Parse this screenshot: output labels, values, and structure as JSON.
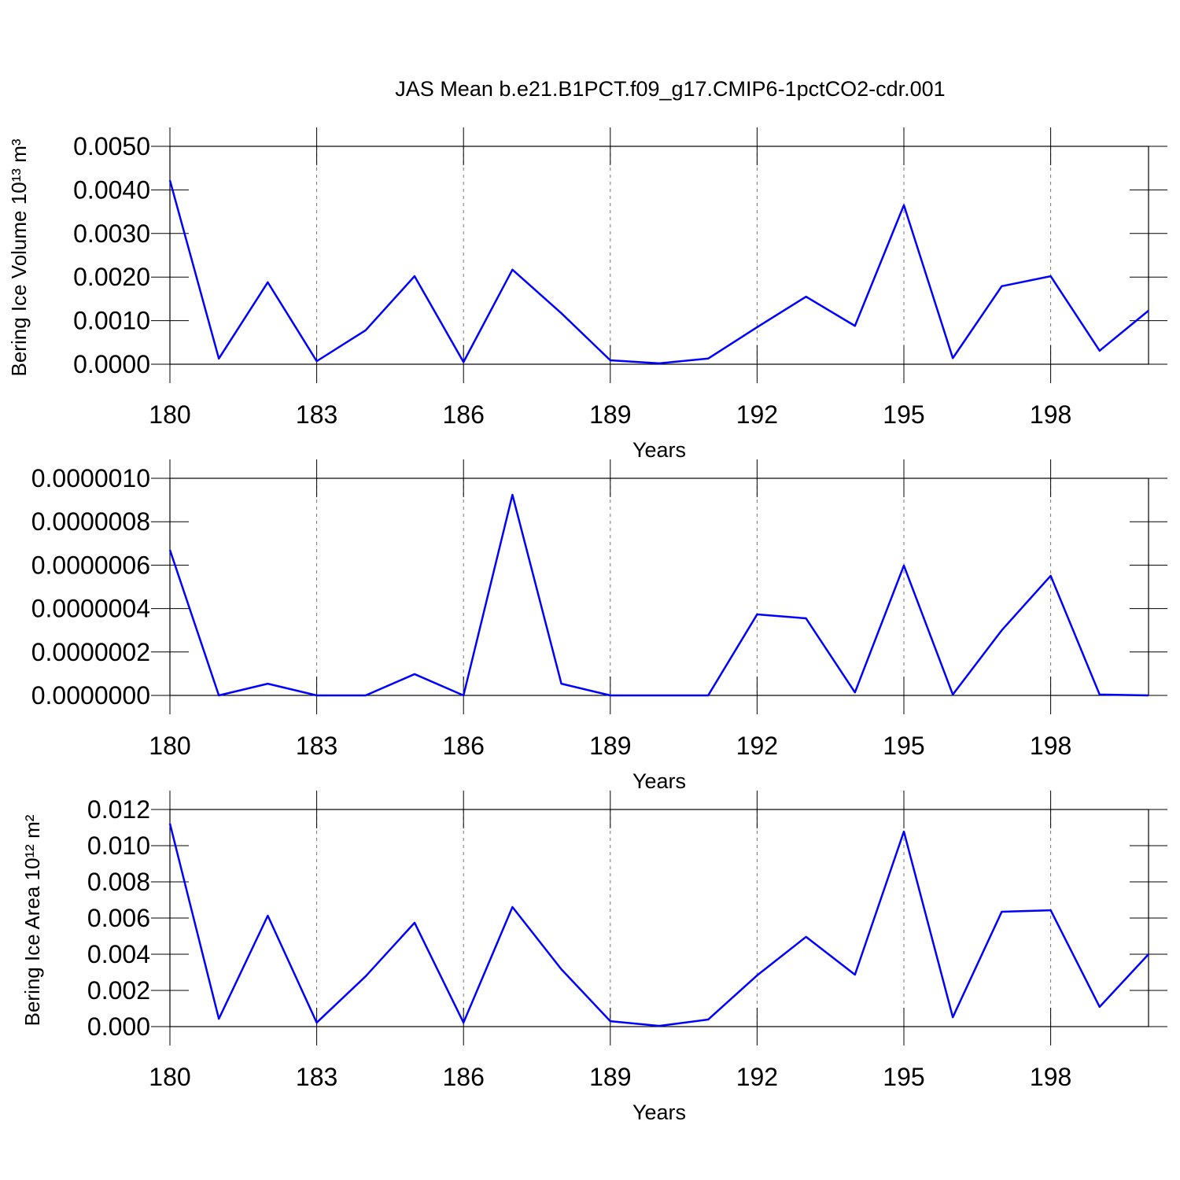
{
  "chart_data": [
    {
      "type": "line",
      "title": "JAS Mean b.e21.B1PCT.f09_g17.CMIP6-1pctCO2-cdr.001",
      "x_label": "Years",
      "y_label": "Bering Ice Volume 10¹³ m³",
      "x": [
        180,
        181,
        182,
        183,
        184,
        185,
        186,
        187,
        188,
        189,
        190,
        191,
        192,
        193,
        194,
        195,
        196,
        197,
        198,
        199,
        200
      ],
      "series": [
        {
          "color": "#0000ff",
          "values": [
            0.00422,
            0.00013,
            0.00188,
            7e-05,
            0.00078,
            0.00202,
            5e-05,
            0.00217,
            0.00117,
            9e-05,
            2e-05,
            0.00013,
            0.00085,
            0.00155,
            0.00088,
            0.00365,
            0.00014,
            0.00179,
            0.00202,
            0.00031,
            0.00123
          ]
        }
      ],
      "xlim": [
        180,
        200
      ],
      "xticks": [
        180,
        183,
        186,
        189,
        192,
        195,
        198
      ],
      "ylim": [
        0,
        0.005
      ],
      "yticks": [
        {
          "value": 0,
          "label": "0.0000"
        },
        {
          "value": 0.001,
          "label": "0.0010"
        },
        {
          "value": 0.002,
          "label": "0.0020"
        },
        {
          "value": 0.003,
          "label": "0.0030"
        },
        {
          "value": 0.004,
          "label": "0.0040"
        },
        {
          "value": 0.005,
          "label": "0.0050"
        }
      ],
      "grid": "x"
    },
    {
      "type": "line",
      "x_label": "Years",
      "x": [
        180,
        181,
        182,
        183,
        184,
        185,
        186,
        187,
        188,
        189,
        190,
        191,
        192,
        193,
        194,
        195,
        196,
        197,
        198,
        199,
        200
      ],
      "series": [
        {
          "color": "#0000ff",
          "values": [
            6.7e-07,
            0,
            5.4e-08,
            0,
            0,
            9.8e-08,
            0,
            9.24e-07,
            5.4e-08,
            0,
            0,
            0,
            3.73e-07,
            3.55e-07,
            1.4e-08,
            5.98e-07,
            4e-09,
            3e-07,
            5.51e-07,
            4e-09,
            0
          ]
        }
      ],
      "xlim": [
        180,
        200
      ],
      "xticks": [
        180,
        183,
        186,
        189,
        192,
        195,
        198
      ],
      "ylim": [
        0,
        1e-06
      ],
      "yticks": [
        {
          "value": 0,
          "label": "0.0000000"
        },
        {
          "value": 2e-07,
          "label": "0.0000002"
        },
        {
          "value": 4e-07,
          "label": "0.0000004"
        },
        {
          "value": 6e-07,
          "label": "0.0000006"
        },
        {
          "value": 8e-07,
          "label": "0.0000008"
        },
        {
          "value": 1e-06,
          "label": "0.0000010"
        }
      ],
      "grid": "x"
    },
    {
      "type": "line",
      "x_label": "Years",
      "y_label": "Bering Ice Area 10¹² m²",
      "x": [
        180,
        181,
        182,
        183,
        184,
        185,
        186,
        187,
        188,
        189,
        190,
        191,
        192,
        193,
        194,
        195,
        196,
        197,
        198,
        199,
        200
      ],
      "series": [
        {
          "color": "#0000ff",
          "values": [
            0.01122,
            0.00043,
            0.00613,
            0.00022,
            0.00278,
            0.00574,
            0.00022,
            0.00661,
            0.00317,
            0.0003,
            4e-05,
            0.00039,
            0.00283,
            0.00496,
            0.00287,
            0.01078,
            0.00052,
            0.00635,
            0.00643,
            0.00109,
            0.004
          ]
        }
      ],
      "xlim": [
        180,
        200
      ],
      "xticks": [
        180,
        183,
        186,
        189,
        192,
        195,
        198
      ],
      "ylim": [
        0,
        0.012
      ],
      "yticks": [
        {
          "value": 0,
          "label": "0.000"
        },
        {
          "value": 0.002,
          "label": "0.002"
        },
        {
          "value": 0.004,
          "label": "0.004"
        },
        {
          "value": 0.006,
          "label": "0.006"
        },
        {
          "value": 0.008,
          "label": "0.008"
        },
        {
          "value": 0.01,
          "label": "0.010"
        },
        {
          "value": 0.012,
          "label": "0.012"
        }
      ],
      "grid": "x"
    }
  ]
}
